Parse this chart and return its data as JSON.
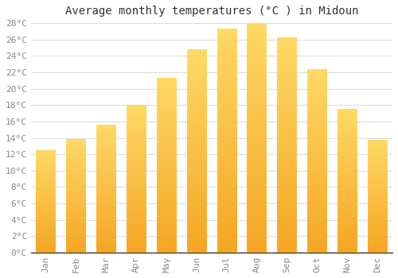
{
  "title": "Average monthly temperatures (°C ) in Midoun",
  "months": [
    "Jan",
    "Feb",
    "Mar",
    "Apr",
    "May",
    "Jun",
    "Jul",
    "Aug",
    "Sep",
    "Oct",
    "Nov",
    "Dec"
  ],
  "temperatures": [
    12.5,
    13.8,
    15.6,
    18.0,
    21.3,
    24.8,
    27.3,
    28.0,
    26.2,
    22.3,
    17.5,
    13.7
  ],
  "bar_color_bottom": "#F5A623",
  "bar_color_top": "#FFD966",
  "background_color": "#FFFFFF",
  "grid_color": "#DDDDDD",
  "ylim": [
    0,
    28
  ],
  "ytick_step": 2,
  "title_fontsize": 10,
  "tick_fontsize": 8,
  "tick_color": "#888888",
  "font_family": "monospace",
  "bar_width": 0.65
}
